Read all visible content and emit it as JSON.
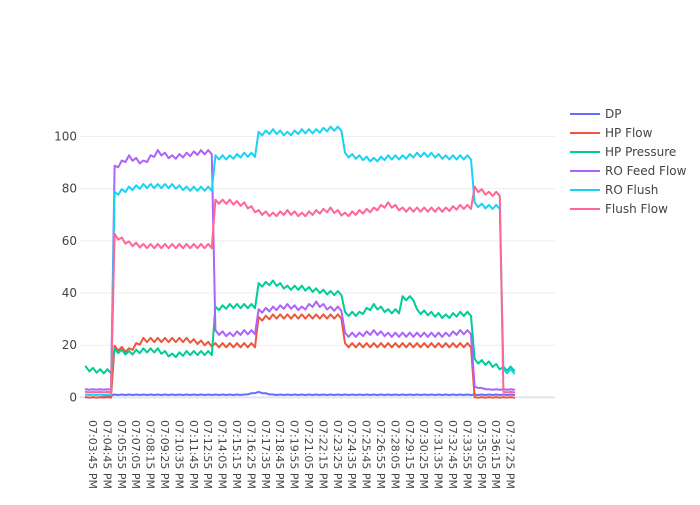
{
  "chart_data": {
    "type": "line",
    "title": "",
    "xlabel": "",
    "ylabel": "",
    "ylim": [
      -1,
      114
    ],
    "grid": true,
    "legend_position": "top-right",
    "x": [
      "07:03:45 PM",
      "07:04:45 PM",
      "07:05:55 PM",
      "07:07:05 PM",
      "07:08:15 PM",
      "07:09:25 PM",
      "07:10:35 PM",
      "07:11:45 PM",
      "07:12:55 PM",
      "07:14:05 PM",
      "07:15:15 PM",
      "07:16:25 PM",
      "07:17:35 PM",
      "07:18:45 PM",
      "07:19:55 PM",
      "07:21:05 PM",
      "07:22:15 PM",
      "07:23:25 PM",
      "07:24:35 PM",
      "07:25:45 PM",
      "07:26:55 PM",
      "07:28:05 PM",
      "07:29:15 PM",
      "07:30:25 PM",
      "07:31:35 PM",
      "07:32:45 PM",
      "07:33:55 PM",
      "07:35:05 PM",
      "07:36:15 PM",
      "07:37:25 PM"
    ],
    "x_tick_labels": [
      "07:03:45 PM",
      "07:04:45 PM",
      "07:05:55 PM",
      "07:07:05 PM",
      "07:08:15 PM",
      "07:09:25 PM",
      "07:10:35 PM",
      "07:11:45 PM",
      "07:12:55 PM",
      "07:14:05 PM",
      "07:15:15 PM",
      "07:16:25 PM",
      "07:17:35 PM",
      "07:18:45 PM",
      "07:19:55 PM",
      "07:21:05 PM",
      "07:22:15 PM",
      "07:23:25 PM",
      "07:24:35 PM",
      "07:25:45 PM",
      "07:26:55 PM",
      "07:28:05 PM",
      "07:29:15 PM",
      "07:30:25 PM",
      "07:31:35 PM",
      "07:32:45 PM",
      "07:33:55 PM",
      "07:35:05 PM",
      "07:36:15 PM",
      "07:37:25 PM"
    ],
    "y_ticks": [
      0,
      20,
      40,
      60,
      80,
      100
    ],
    "series": [
      {
        "name": "DP",
        "color": "#636efa",
        "values": [
          0,
          0,
          1,
          1,
          1,
          1,
          1,
          1,
          1,
          1,
          1,
          1,
          2,
          1,
          1,
          1,
          1,
          1,
          1,
          1,
          1,
          1,
          1,
          1,
          1,
          1,
          1,
          1,
          1,
          1
        ]
      },
      {
        "name": "HP Flow",
        "color": "#EF553B",
        "values": [
          0,
          0,
          19,
          18,
          22,
          22,
          22,
          22,
          21,
          20,
          20,
          20,
          30,
          31,
          31,
          31,
          31,
          31,
          20,
          20,
          20,
          20,
          20,
          20,
          20,
          20,
          20,
          0,
          0,
          0
        ]
      },
      {
        "name": "HP Pressure",
        "color": "#00cc96",
        "values": [
          11,
          10,
          18,
          17,
          18,
          18,
          16,
          17,
          17,
          34,
          35,
          35,
          43,
          44,
          42,
          42,
          41,
          40,
          32,
          32,
          35,
          33,
          38,
          33,
          32,
          31,
          32,
          14,
          13,
          11
        ]
      },
      {
        "name": "RO Feed Flow",
        "color": "#ab63fa",
        "values": [
          3,
          3,
          88,
          92,
          90,
          94,
          92,
          93,
          94,
          25,
          24,
          25,
          33,
          34,
          35,
          34,
          36,
          34,
          24,
          24,
          25,
          24,
          24,
          24,
          24,
          24,
          25,
          4,
          3,
          3
        ]
      },
      {
        "name": "RO Flush",
        "color": "#19d3f3",
        "values": [
          1,
          1,
          78,
          80,
          81,
          81,
          81,
          80,
          80,
          92,
          92,
          93,
          101,
          102,
          101,
          102,
          102,
          103,
          93,
          92,
          91,
          92,
          92,
          93,
          93,
          92,
          92,
          74,
          73,
          10
        ]
      },
      {
        "name": "Flush Flow",
        "color": "#FF6692",
        "values": [
          2,
          2,
          62,
          59,
          58,
          58,
          58,
          58,
          58,
          75,
          75,
          74,
          71,
          70,
          71,
          70,
          71,
          72,
          70,
          71,
          72,
          74,
          72,
          72,
          72,
          72,
          73,
          80,
          78,
          2
        ]
      }
    ]
  }
}
